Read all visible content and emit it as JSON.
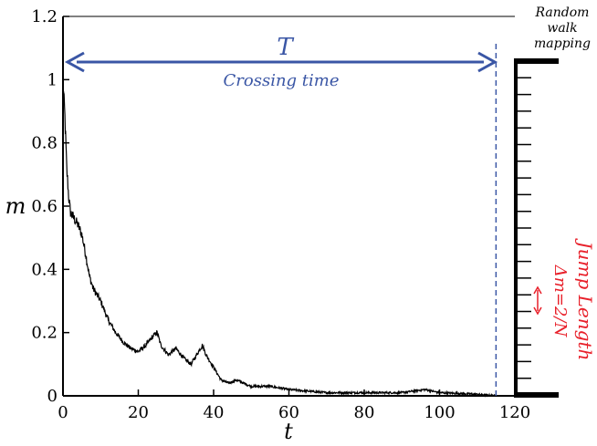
{
  "chart_data": {
    "type": "line",
    "xlabel": "t",
    "ylabel": "m",
    "xlim": [
      0,
      120
    ],
    "ylim": [
      0,
      1.2
    ],
    "x_ticks": [
      0,
      20,
      40,
      60,
      80,
      100,
      120
    ],
    "y_ticks": [
      "0",
      "0.2",
      "0.4",
      "0.6",
      "0.8",
      "1",
      "1.2"
    ],
    "grid": false,
    "series": [
      {
        "color": "#000000",
        "x": [
          0,
          0.5,
          1,
          1.5,
          2,
          3,
          4,
          5,
          6,
          7,
          8,
          9,
          10,
          12,
          14,
          16,
          18,
          20,
          22,
          24,
          25,
          26,
          28,
          30,
          32,
          34,
          36,
          37,
          38,
          40,
          42,
          44,
          46,
          48,
          50,
          55,
          60,
          70,
          80,
          90,
          96,
          100,
          110,
          115
        ],
        "y": [
          1.0,
          0.88,
          0.72,
          0.63,
          0.58,
          0.56,
          0.54,
          0.51,
          0.45,
          0.38,
          0.34,
          0.32,
          0.3,
          0.24,
          0.2,
          0.17,
          0.15,
          0.14,
          0.16,
          0.19,
          0.2,
          0.16,
          0.13,
          0.15,
          0.12,
          0.1,
          0.14,
          0.16,
          0.13,
          0.09,
          0.05,
          0.04,
          0.05,
          0.04,
          0.03,
          0.03,
          0.02,
          0.01,
          0.01,
          0.01,
          0.02,
          0.01,
          0.005,
          0.0
        ]
      }
    ],
    "annotations": {
      "crossing_symbol": "T",
      "crossing_label": "Crossing time",
      "crossing_time": 115,
      "random_walk_label": [
        "Random",
        "walk",
        "mapping"
      ],
      "jump_length_label": "Jump Length",
      "jump_formula": "Δm=2/N",
      "walk_positions": 20
    },
    "colors": {
      "curve": "#000000",
      "annotation_blue": "#3a56a5",
      "annotation_red": "#e8202a"
    }
  }
}
